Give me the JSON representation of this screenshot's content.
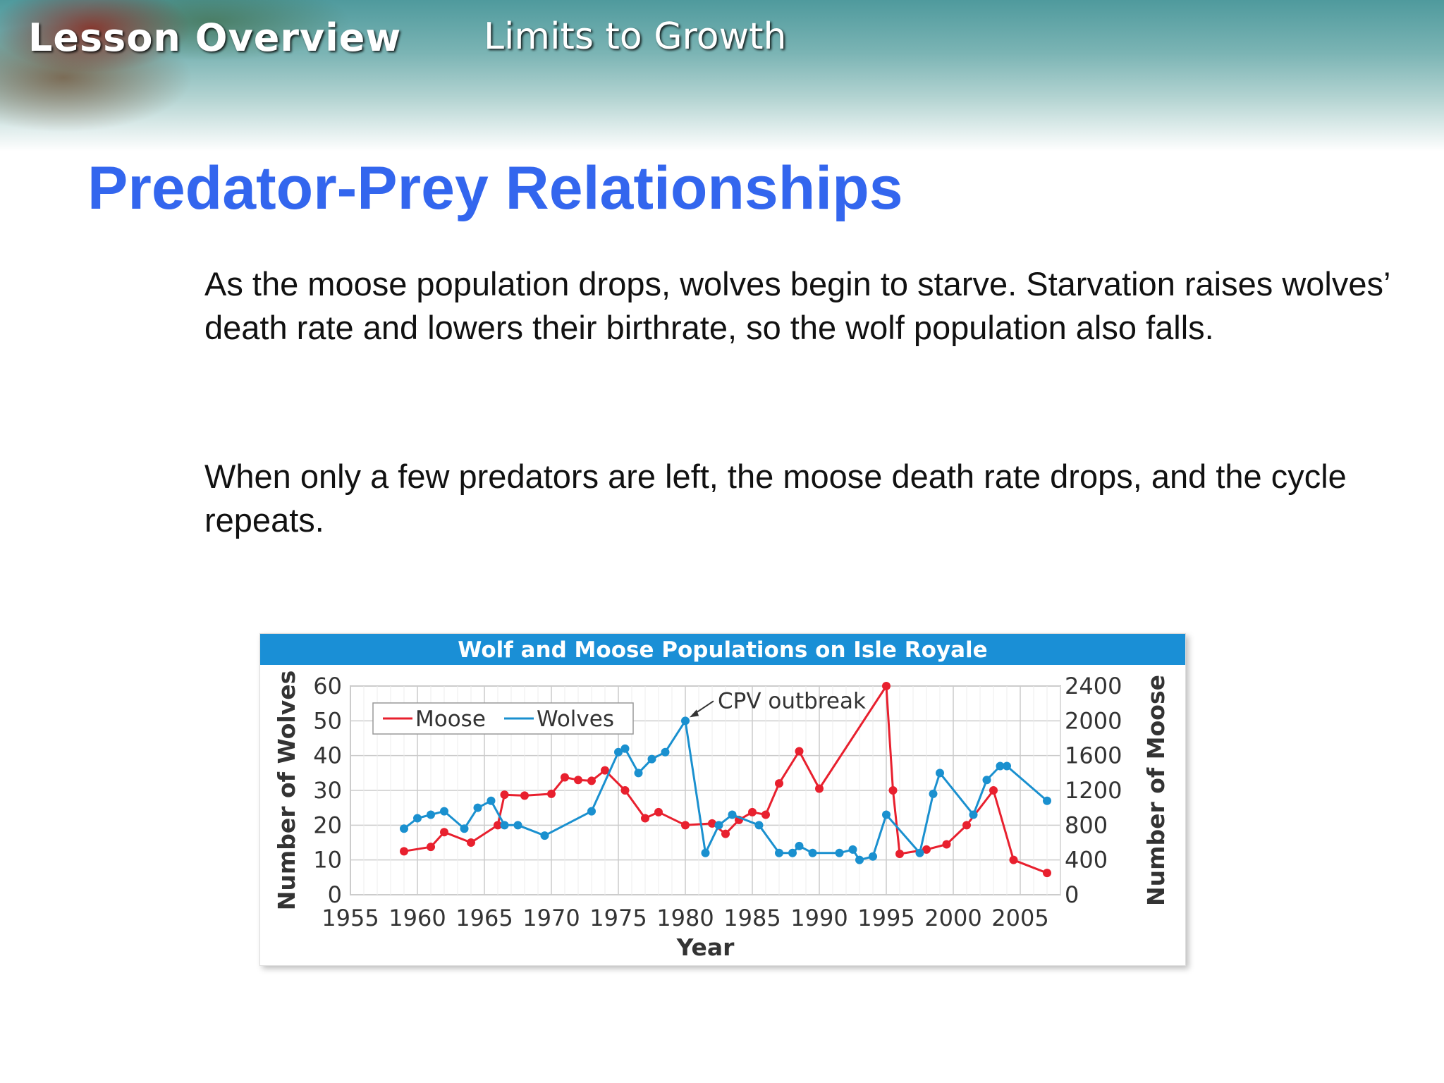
{
  "header": {
    "lesson_label": "Lesson Overview",
    "topic": "Limits to Growth"
  },
  "slide": {
    "title": "Predator-Prey Relationships",
    "paragraphs": [
      "As the moose population drops, wolves begin to starve. Starvation raises wolves’ death rate and lowers their birthrate, so the wolf population also falls.",
      "When only a few predators are left, the moose death rate drops, and the cycle repeats."
    ]
  },
  "colors": {
    "title_blue": "#3366ee",
    "chart_header": "#1a8fd6",
    "moose": "#e8202e",
    "wolves": "#1a90cf"
  },
  "chart_data": {
    "type": "line",
    "title": "Wolf and  Moose Populations on Isle Royale",
    "xlabel": "Year",
    "ylabel_left": "Number of Wolves",
    "ylabel_right": "Number of Moose",
    "xlim": [
      1955,
      2008
    ],
    "x_ticks": [
      1955,
      1960,
      1965,
      1970,
      1975,
      1980,
      1985,
      1990,
      1995,
      2000,
      2005
    ],
    "ylim_left": [
      0,
      60
    ],
    "y_ticks_left": [
      0,
      10,
      20,
      30,
      40,
      50,
      60
    ],
    "ylim_right": [
      0,
      2400
    ],
    "y_ticks_right": [
      0,
      400,
      800,
      1200,
      1600,
      2000,
      2400
    ],
    "grid": true,
    "legend_position": "top-left",
    "annotations": [
      {
        "text": "CPV outbreak",
        "x": 1980,
        "y": 50,
        "axis": "left"
      }
    ],
    "series": [
      {
        "name": "Moose",
        "axis": "right",
        "color": "#e8202e",
        "points": [
          [
            1959,
            500
          ],
          [
            1961,
            550
          ],
          [
            1962,
            720
          ],
          [
            1964,
            600
          ],
          [
            1966,
            800
          ],
          [
            1966.5,
            1150
          ],
          [
            1968,
            1140
          ],
          [
            1970,
            1160
          ],
          [
            1971,
            1350
          ],
          [
            1972,
            1320
          ],
          [
            1973,
            1310
          ],
          [
            1974,
            1430
          ],
          [
            1975.5,
            1200
          ],
          [
            1977,
            880
          ],
          [
            1978,
            950
          ],
          [
            1980,
            800
          ],
          [
            1982,
            820
          ],
          [
            1983,
            700
          ],
          [
            1984,
            860
          ],
          [
            1985,
            950
          ],
          [
            1986,
            920
          ],
          [
            1987,
            1280
          ],
          [
            1988.5,
            1650
          ],
          [
            1990,
            1220
          ],
          [
            1995,
            2400
          ],
          [
            1995.5,
            1200
          ],
          [
            1996,
            470
          ],
          [
            1998,
            520
          ],
          [
            1999.5,
            580
          ],
          [
            2001,
            800
          ],
          [
            2003,
            1200
          ],
          [
            2004.5,
            400
          ],
          [
            2007,
            250
          ]
        ]
      },
      {
        "name": "Wolves",
        "axis": "left",
        "color": "#1a90cf",
        "points": [
          [
            1959,
            19
          ],
          [
            1960,
            22
          ],
          [
            1961,
            23
          ],
          [
            1962,
            24
          ],
          [
            1963.5,
            19
          ],
          [
            1964.5,
            25
          ],
          [
            1965.5,
            27
          ],
          [
            1966.5,
            20
          ],
          [
            1967.5,
            20
          ],
          [
            1969.5,
            17
          ],
          [
            1973,
            24
          ],
          [
            1975,
            41
          ],
          [
            1975.5,
            42
          ],
          [
            1976.5,
            35
          ],
          [
            1977.5,
            39
          ],
          [
            1978.5,
            41
          ],
          [
            1980,
            50
          ],
          [
            1981.5,
            12
          ],
          [
            1982.5,
            20
          ],
          [
            1983.5,
            23
          ],
          [
            1985.5,
            20
          ],
          [
            1987,
            12
          ],
          [
            1988,
            12
          ],
          [
            1988.5,
            14
          ],
          [
            1989.5,
            12
          ],
          [
            1991.5,
            12
          ],
          [
            1992.5,
            13
          ],
          [
            1993,
            10
          ],
          [
            1994,
            11
          ],
          [
            1995,
            23
          ],
          [
            1997.5,
            12
          ],
          [
            1998.5,
            29
          ],
          [
            1999,
            35
          ],
          [
            2001.5,
            23
          ],
          [
            2002.5,
            33
          ],
          [
            2003.5,
            37
          ],
          [
            2004,
            37
          ],
          [
            2007,
            27
          ]
        ]
      }
    ]
  }
}
